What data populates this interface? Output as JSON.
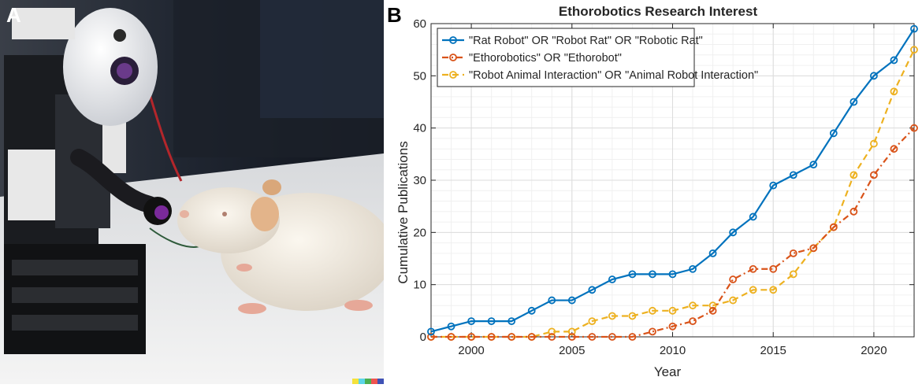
{
  "figure": {
    "panel_a_label": "A",
    "panel_b_label": "B",
    "photo_description_icon": "robot-rat-photo"
  },
  "colors": {
    "series1": "#0072BD",
    "series2": "#D95319",
    "series3": "#EDB120"
  },
  "chart_data": {
    "type": "line",
    "title": "Ethorobotics Research Interest",
    "xlabel": "Year",
    "ylabel": "Cumulative Publications",
    "xlim": [
      1998,
      2022
    ],
    "ylim": [
      0,
      60
    ],
    "xticks": [
      2000,
      2005,
      2010,
      2015,
      2020
    ],
    "yticks": [
      0,
      10,
      20,
      30,
      40,
      50,
      60
    ],
    "grid": true,
    "legend_position": "top-left",
    "x": [
      1998,
      1999,
      2000,
      2001,
      2002,
      2003,
      2004,
      2005,
      2006,
      2007,
      2008,
      2009,
      2010,
      2011,
      2012,
      2013,
      2014,
      2015,
      2016,
      2017,
      2018,
      2019,
      2020,
      2021,
      2022
    ],
    "series": [
      {
        "name": "\"Rat Robot\" OR \"Robot Rat\" OR \"Robotic Rat\"",
        "style": "solid",
        "color": "#0072BD",
        "values": [
          1,
          2,
          3,
          3,
          3,
          5,
          7,
          7,
          9,
          11,
          12,
          12,
          12,
          13,
          16,
          20,
          23,
          29,
          31,
          33,
          39,
          45,
          50,
          53,
          59
        ]
      },
      {
        "name": "\"Ethorobotics\" OR \"Ethorobot\"",
        "style": "dashdot",
        "color": "#D95319",
        "values": [
          0,
          0,
          0,
          0,
          0,
          0,
          0,
          0,
          0,
          0,
          0,
          1,
          2,
          3,
          5,
          11,
          13,
          13,
          16,
          17,
          21,
          24,
          31,
          36,
          40
        ]
      },
      {
        "name": "\"Robot Animal Interaction\" OR \"Animal Robot Interaction\"",
        "style": "dashed",
        "color": "#EDB120",
        "values": [
          0,
          0,
          0,
          0,
          0,
          0,
          1,
          1,
          3,
          4,
          4,
          5,
          5,
          6,
          6,
          7,
          9,
          9,
          12,
          17,
          21,
          31,
          37,
          47,
          55
        ]
      }
    ]
  }
}
